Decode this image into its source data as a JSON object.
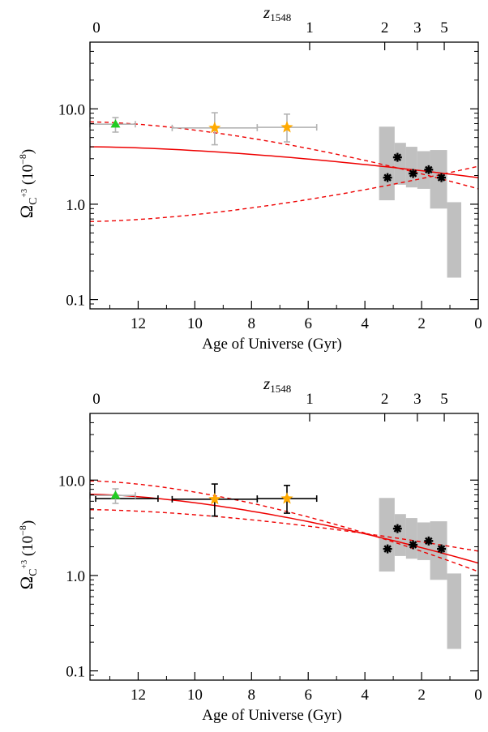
{
  "chart_data": [
    {
      "type": "scatter",
      "xlabel": "Age of Universe (Gyr)",
      "x_ticks": [
        {
          "v": 12,
          "label": "12"
        },
        {
          "v": 10,
          "label": "10"
        },
        {
          "v": 8,
          "label": "8"
        },
        {
          "v": 6,
          "label": "6"
        },
        {
          "v": 4,
          "label": "4"
        },
        {
          "v": 2,
          "label": "2"
        },
        {
          "v": 0,
          "label": "0"
        }
      ],
      "xlim": [
        13.7,
        0
      ],
      "ylabel": {
        "main": "Ω",
        "sub": "C",
        "sup": "+3",
        "unit": " (10",
        "unit_sup": "−8",
        "unit_end": ")"
      },
      "y_ticks": [
        {
          "v": 0.1,
          "label": "0.1"
        },
        {
          "v": 1,
          "label": "1.0"
        },
        {
          "v": 10,
          "label": "10.0"
        }
      ],
      "ylim": [
        0.08,
        50
      ],
      "ylog": true,
      "top_axis": {
        "title": "z",
        "title_sub": "1548",
        "ticks": [
          {
            "age": 13.7,
            "label": "0"
          },
          {
            "age": 5.95,
            "label": "1"
          },
          {
            "age": 3.3,
            "label": "2"
          },
          {
            "age": 2.15,
            "label": "3"
          },
          {
            "age": 1.2,
            "label": "5"
          }
        ]
      },
      "gray_boxes": [
        {
          "x": [
            3.5,
            2.95
          ],
          "y": [
            1.1,
            6.5
          ]
        },
        {
          "x": [
            2.95,
            2.55
          ],
          "y": [
            1.6,
            4.4
          ]
        },
        {
          "x": [
            2.55,
            2.15
          ],
          "y": [
            1.5,
            4.0
          ]
        },
        {
          "x": [
            2.15,
            1.7
          ],
          "y": [
            1.45,
            3.6
          ]
        },
        {
          "x": [
            1.7,
            1.1
          ],
          "y": [
            0.9,
            3.7
          ]
        },
        {
          "x": [
            1.1,
            0.6
          ],
          "y": [
            0.17,
            1.05
          ]
        }
      ],
      "series": [
        {
          "marker": "triangle",
          "color": "#22cc22",
          "errcolor": "#b3b3b3",
          "points": [
            {
              "x": 12.8,
              "y": 6.9,
              "xerr": [
                13.7,
                12.1
              ],
              "yerr": [
                5.7,
                8.1
              ]
            }
          ]
        },
        {
          "marker": "star",
          "color": "#ffaa00",
          "errcolor": "#b3b3b3",
          "points": [
            {
              "x": 9.3,
              "y": 6.3,
              "xerr": [
                10.8,
                7.8
              ],
              "yerr": [
                4.2,
                9.1
              ]
            },
            {
              "x": 6.75,
              "y": 6.4,
              "xerr": [
                7.8,
                5.7
              ],
              "yerr": [
                4.5,
                8.8
              ]
            }
          ]
        },
        {
          "marker": "asterisk",
          "color": "#000000",
          "points": [
            {
              "x": 3.2,
              "y": 1.9
            },
            {
              "x": 2.85,
              "y": 3.1
            },
            {
              "x": 2.3,
              "y": 2.1
            },
            {
              "x": 1.75,
              "y": 2.3
            },
            {
              "x": 1.3,
              "y": 1.9
            }
          ]
        }
      ],
      "fit": {
        "color": "#ee0000",
        "solid": [
          [
            13.7,
            4.0
          ],
          [
            0,
            1.9
          ]
        ],
        "dashed": [
          [
            [
              13.7,
              7.3
            ],
            [
              0,
              1.45
            ]
          ],
          [
            [
              13.7,
              0.66
            ],
            [
              0,
              2.5
            ]
          ]
        ]
      }
    },
    {
      "type": "scatter",
      "xlabel": "Age of Universe (Gyr)",
      "x_ticks": [
        {
          "v": 12,
          "label": "12"
        },
        {
          "v": 10,
          "label": "10"
        },
        {
          "v": 8,
          "label": "8"
        },
        {
          "v": 6,
          "label": "6"
        },
        {
          "v": 4,
          "label": "4"
        },
        {
          "v": 2,
          "label": "2"
        },
        {
          "v": 0,
          "label": "0"
        }
      ],
      "xlim": [
        13.7,
        0
      ],
      "ylabel": {
        "main": "Ω",
        "sub": "C",
        "sup": "+3",
        "unit": " (10",
        "unit_sup": "−8",
        "unit_end": ")"
      },
      "y_ticks": [
        {
          "v": 0.1,
          "label": "0.1"
        },
        {
          "v": 1,
          "label": "1.0"
        },
        {
          "v": 10,
          "label": "10.0"
        }
      ],
      "ylim": [
        0.08,
        50
      ],
      "ylog": true,
      "top_axis": {
        "title": "z",
        "title_sub": "1548",
        "ticks": [
          {
            "age": 13.7,
            "label": "0"
          },
          {
            "age": 5.95,
            "label": "1"
          },
          {
            "age": 3.3,
            "label": "2"
          },
          {
            "age": 2.15,
            "label": "3"
          },
          {
            "age": 1.2,
            "label": "5"
          }
        ]
      },
      "gray_boxes": [
        {
          "x": [
            3.5,
            2.95
          ],
          "y": [
            1.1,
            6.5
          ]
        },
        {
          "x": [
            2.95,
            2.55
          ],
          "y": [
            1.6,
            4.4
          ]
        },
        {
          "x": [
            2.55,
            2.15
          ],
          "y": [
            1.5,
            4.0
          ]
        },
        {
          "x": [
            2.15,
            1.7
          ],
          "y": [
            1.45,
            3.6
          ]
        },
        {
          "x": [
            1.7,
            1.1
          ],
          "y": [
            0.9,
            3.7
          ]
        },
        {
          "x": [
            1.1,
            0.6
          ],
          "y": [
            0.17,
            1.05
          ]
        }
      ],
      "series": [
        {
          "marker": "line",
          "color": "#000000",
          "errcolor": "#000000",
          "points": [
            {
              "x": 12.4,
              "y": 6.4,
              "xerr": [
                13.5,
                11.3
              ],
              "yerr": [
                6.4,
                6.4
              ]
            }
          ]
        },
        {
          "marker": "triangle",
          "color": "#22cc22",
          "errcolor": "#b3b3b3",
          "points": [
            {
              "x": 12.8,
              "y": 6.9,
              "xerr": [
                13.7,
                12.1
              ],
              "yerr": [
                5.7,
                8.1
              ]
            }
          ]
        },
        {
          "marker": "star",
          "color": "#ffaa00",
          "errcolor": "#000000",
          "points": [
            {
              "x": 9.3,
              "y": 6.3,
              "xerr": [
                10.8,
                7.8
              ],
              "yerr": [
                4.2,
                9.1
              ]
            },
            {
              "x": 6.75,
              "y": 6.4,
              "xerr": [
                7.8,
                5.7
              ],
              "yerr": [
                4.5,
                8.8
              ]
            }
          ]
        },
        {
          "marker": "asterisk",
          "color": "#000000",
          "points": [
            {
              "x": 3.2,
              "y": 1.9
            },
            {
              "x": 2.85,
              "y": 3.1
            },
            {
              "x": 2.3,
              "y": 2.1
            },
            {
              "x": 1.75,
              "y": 2.3
            },
            {
              "x": 1.3,
              "y": 1.9
            }
          ]
        }
      ],
      "fit": {
        "color": "#ee0000",
        "solid": [
          [
            13.7,
            7.1
          ],
          [
            0,
            1.35
          ]
        ],
        "dashed": [
          [
            [
              13.7,
              9.8
            ],
            [
              0,
              1.1
            ]
          ],
          [
            [
              13.7,
              4.9
            ],
            [
              0,
              1.8
            ]
          ]
        ]
      }
    }
  ]
}
